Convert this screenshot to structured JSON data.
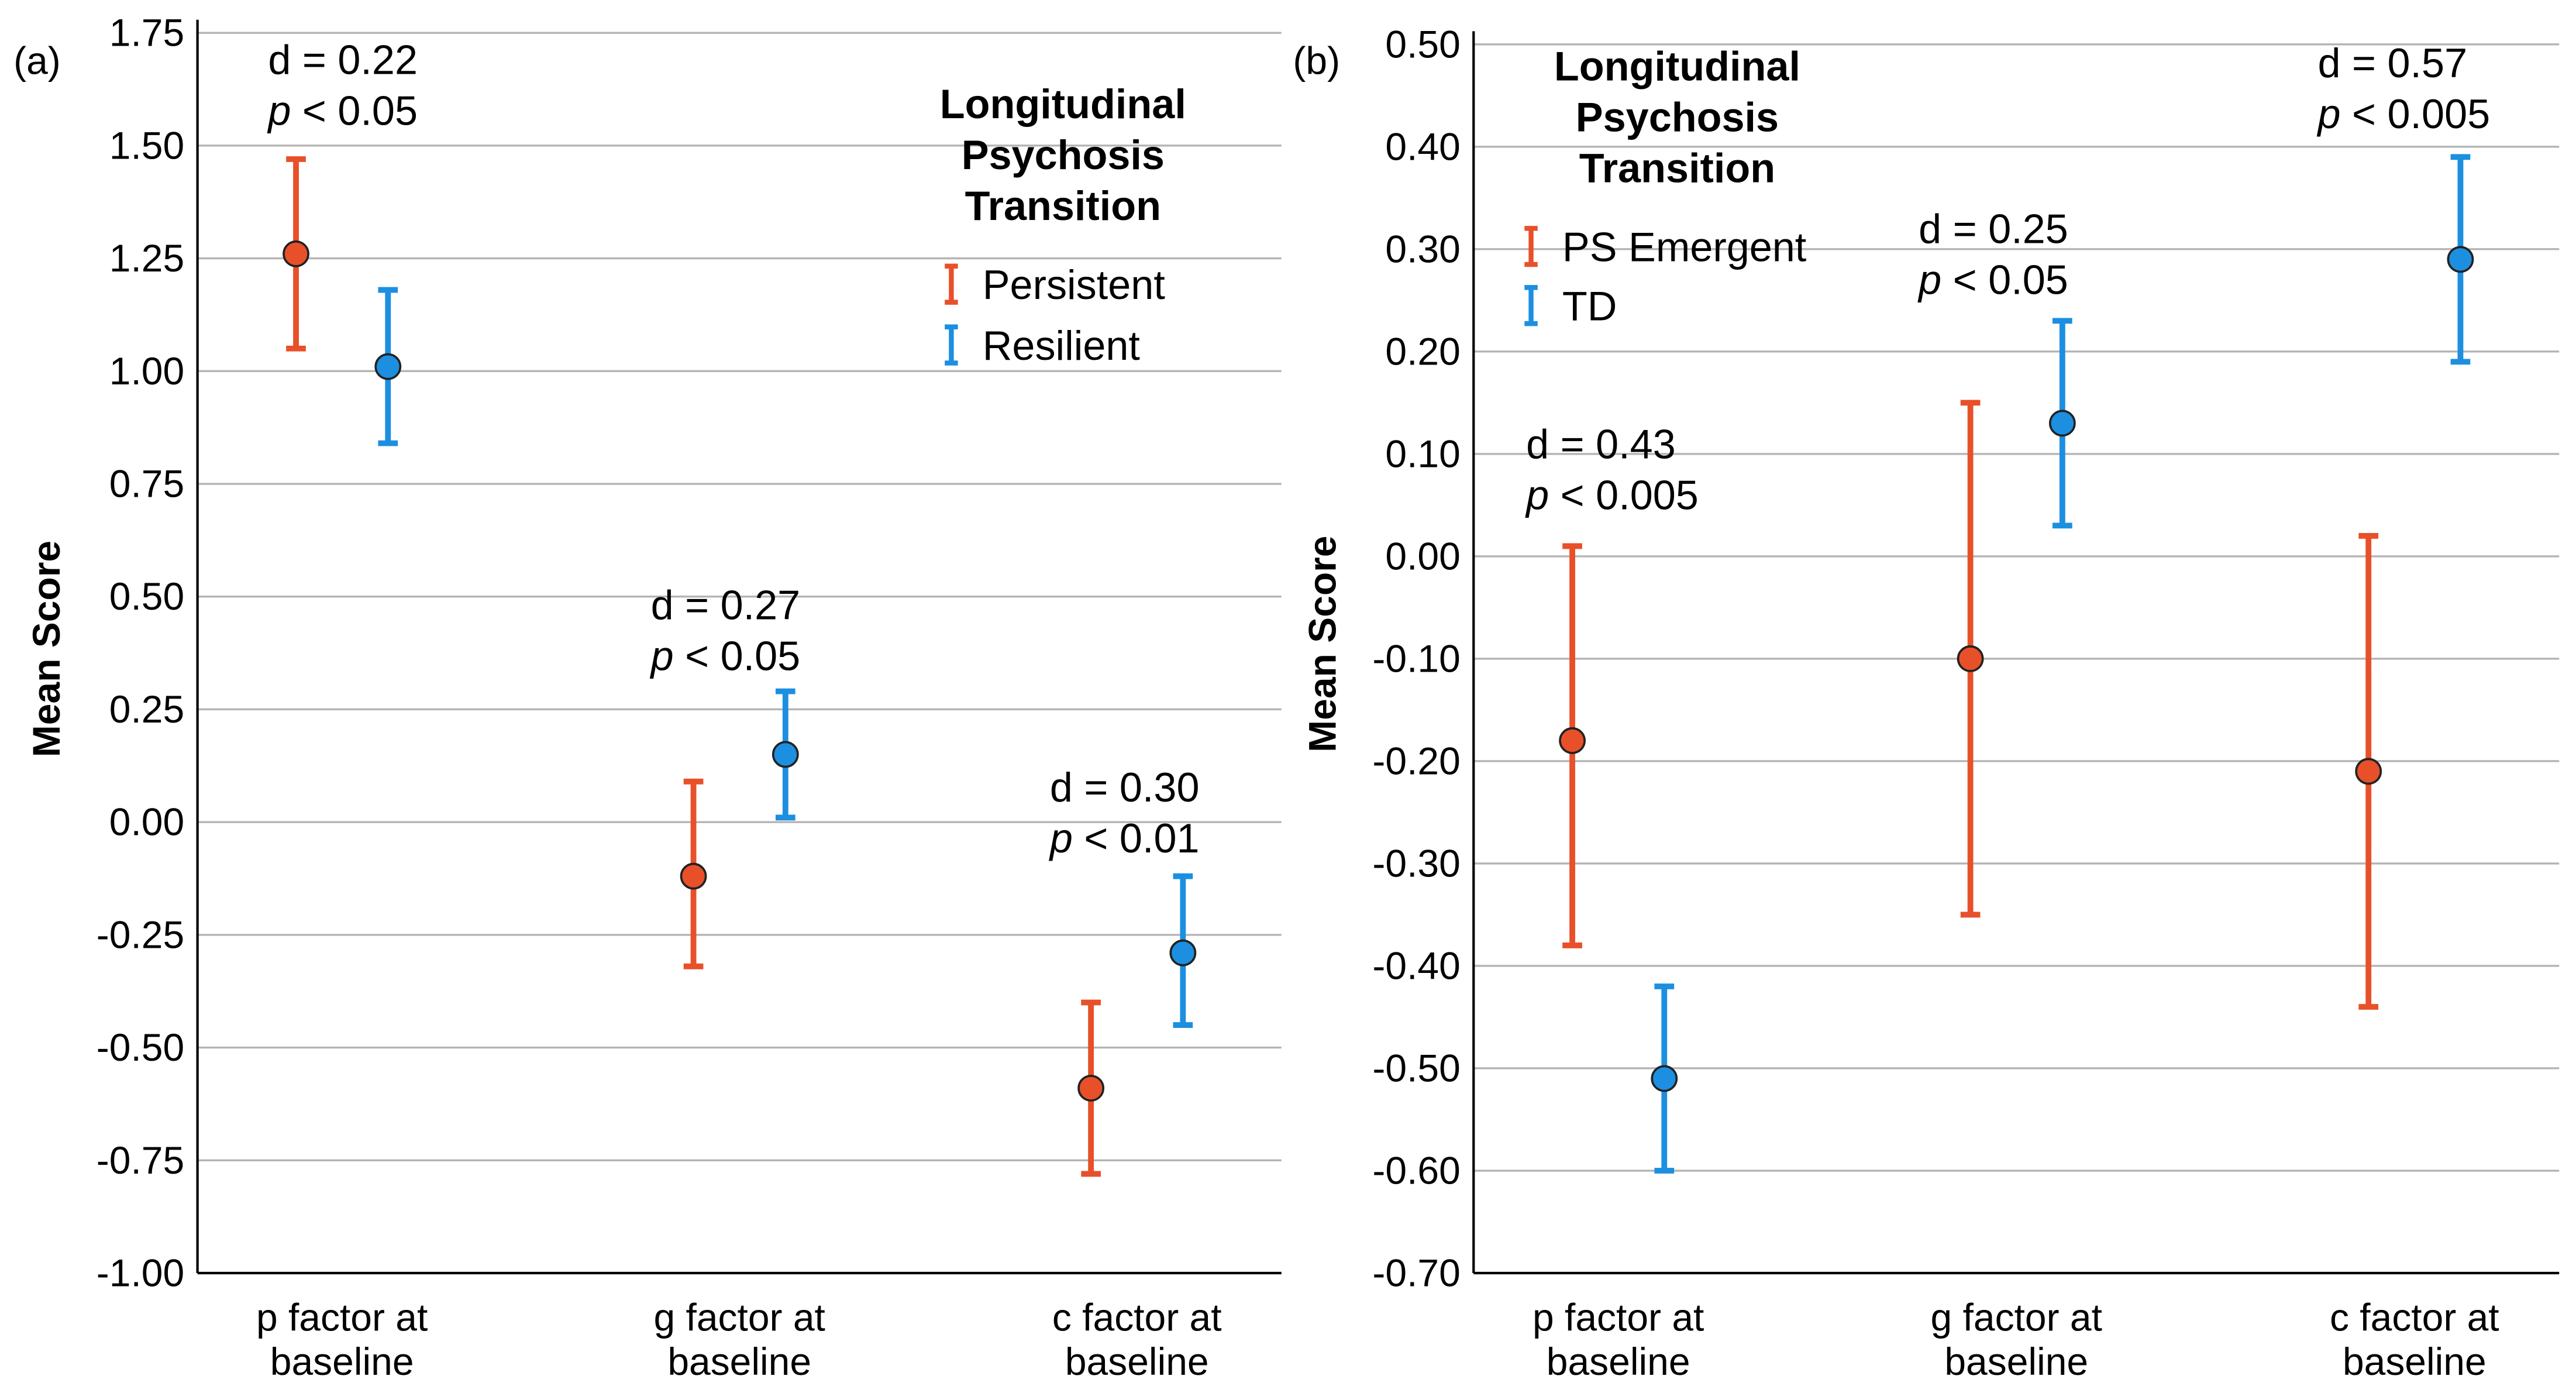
{
  "chart_data": [
    {
      "type": "errorbar",
      "panel_label": "(a)",
      "ylabel": "Mean Score",
      "ylim": [
        -1.0,
        1.75
      ],
      "yticks": [
        "-1.00",
        "-0.75",
        "-0.50",
        "-0.25",
        "0.00",
        "0.25",
        "0.50",
        "0.75",
        "1.00",
        "1.25",
        "1.50",
        "1.75"
      ],
      "ytick_values": [
        -1.0,
        -0.75,
        -0.5,
        -0.25,
        0,
        0.25,
        0.5,
        0.75,
        1.0,
        1.25,
        1.5,
        1.75
      ],
      "categories": [
        [
          "p factor at",
          "baseline"
        ],
        [
          "g factor at",
          "baseline"
        ],
        [
          "c factor at",
          "baseline"
        ]
      ],
      "legend": {
        "title": [
          "Longitudinal",
          "Psychosis",
          "Transition"
        ],
        "placement": "top-right"
      },
      "series": [
        {
          "name": "Persistent",
          "color": "#E8502A",
          "mean": [
            1.26,
            -0.12,
            -0.59
          ],
          "lower": [
            1.05,
            -0.32,
            -0.78
          ],
          "upper": [
            1.47,
            0.09,
            -0.4
          ]
        },
        {
          "name": "Resilient",
          "color": "#1C8FE0",
          "mean": [
            1.01,
            0.15,
            -0.29
          ],
          "lower": [
            0.84,
            0.01,
            -0.45
          ],
          "upper": [
            1.18,
            0.29,
            -0.12
          ]
        }
      ],
      "annotations": [
        {
          "d": "d = 0.22",
          "p": "p",
          "ptext": " < 0.05"
        },
        {
          "d": "d = 0.27",
          "p": "p",
          "ptext": " < 0.05"
        },
        {
          "d": "d = 0.30",
          "p": "p",
          "ptext": " < 0.01"
        }
      ]
    },
    {
      "type": "errorbar",
      "panel_label": "(b)",
      "ylabel": "Mean Score",
      "ylim": [
        -0.7,
        0.5
      ],
      "yticks": [
        "-0.70",
        "-0.60",
        "-0.50",
        "-0.40",
        "-0.30",
        "-0.20",
        "-0.10",
        "0.00",
        "0.10",
        "0.20",
        "0.30",
        "0.40",
        "0.50"
      ],
      "ytick_values": [
        -0.7,
        -0.6,
        -0.5,
        -0.4,
        -0.3,
        -0.2,
        -0.1,
        0,
        0.1,
        0.2,
        0.3,
        0.4,
        0.5
      ],
      "categories": [
        [
          "p factor at",
          "baseline"
        ],
        [
          "g factor at",
          "baseline"
        ],
        [
          "c factor at",
          "baseline"
        ]
      ],
      "legend": {
        "title": [
          "Longitudinal",
          "Psychosis",
          "Transition"
        ],
        "placement": "top-left"
      },
      "series": [
        {
          "name": "PS Emergent",
          "color": "#E8502A",
          "mean": [
            -0.18,
            -0.1,
            -0.21
          ],
          "lower": [
            -0.38,
            -0.35,
            -0.44
          ],
          "upper": [
            0.01,
            0.15,
            0.02
          ]
        },
        {
          "name": "TD",
          "color": "#1C8FE0",
          "mean": [
            -0.51,
            0.13,
            0.29
          ],
          "lower": [
            -0.6,
            0.03,
            0.19
          ],
          "upper": [
            -0.42,
            0.23,
            0.39
          ]
        }
      ],
      "annotations": [
        {
          "d": "d = 0.43",
          "p": "p",
          "ptext": " < 0.005"
        },
        {
          "d": "d = 0.25",
          "p": "p",
          "ptext": " < 0.05"
        },
        {
          "d": "d = 0.57",
          "p": "p",
          "ptext": " < 0.005"
        }
      ]
    }
  ]
}
